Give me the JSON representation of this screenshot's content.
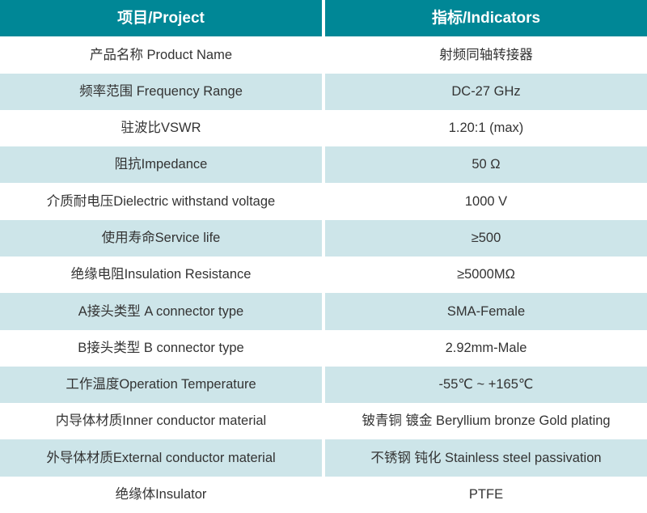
{
  "colors": {
    "header_bg": "#008796",
    "header_text": "#ffffff",
    "alt_row_bg": "#cde5e9",
    "row_bg": "#ffffff",
    "body_text": "#333333",
    "divider": "#ffffff"
  },
  "chart_data": {
    "type": "table",
    "title": "",
    "columns": [
      "项目/Project",
      "指标/Indicators"
    ],
    "rows": [
      [
        "产品名称 Product Name",
        "射频同轴转接器"
      ],
      [
        "频率范围 Frequency Range",
        "DC-27 GHz"
      ],
      [
        "驻波比VSWR",
        "1.20:1 (max)"
      ],
      [
        "阻抗Impedance",
        "50 Ω"
      ],
      [
        "介质耐电压Dielectric withstand voltage",
        "1000 V"
      ],
      [
        "使用寿命Service life",
        "≥500"
      ],
      [
        "绝缘电阻Insulation Resistance",
        "≥5000MΩ"
      ],
      [
        "A接头类型 A connector type",
        "SMA-Female"
      ],
      [
        "B接头类型 B connector type",
        "2.92mm-Male"
      ],
      [
        "工作温度Operation Temperature",
        "-55℃ ~ +165℃"
      ],
      [
        "内导体材质Inner conductor material",
        "铍青铜 镀金 Beryllium bronze Gold plating"
      ],
      [
        "外导体材质External conductor material",
        "不锈钢 钝化 Stainless steel passivation"
      ],
      [
        "绝缘体Insulator",
        "PTFE"
      ]
    ],
    "layout": {
      "header_row": true,
      "alternating_row_shading": "odd data rows shaded light blue",
      "column_split": "50/50 with 4px white divider"
    }
  }
}
